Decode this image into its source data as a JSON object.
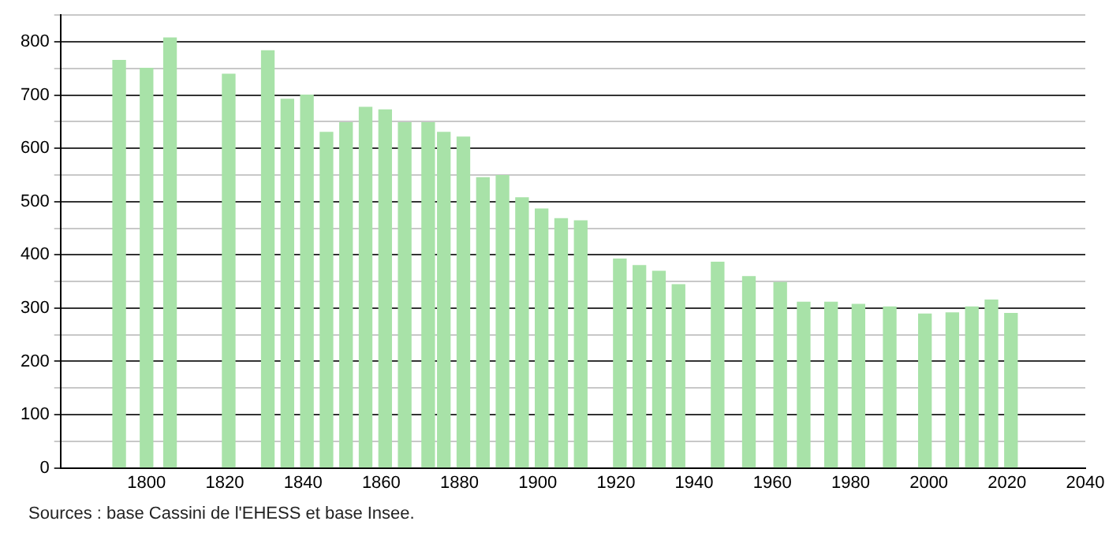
{
  "chart_data": {
    "type": "bar",
    "x": [
      1793,
      1800,
      1806,
      1821,
      1831,
      1836,
      1841,
      1846,
      1851,
      1856,
      1861,
      1866,
      1872,
      1876,
      1881,
      1886,
      1891,
      1896,
      1901,
      1906,
      1911,
      1921,
      1926,
      1931,
      1936,
      1946,
      1954,
      1962,
      1968,
      1975,
      1982,
      1990,
      1999,
      2006,
      2011,
      2016,
      2021
    ],
    "values": [
      765,
      750,
      807,
      739,
      783,
      692,
      700,
      630,
      648,
      677,
      672,
      648,
      648,
      630,
      621,
      545,
      549,
      507,
      486,
      468,
      464,
      392,
      380,
      369,
      344,
      386,
      359,
      348,
      311,
      311,
      307,
      302,
      289,
      291,
      302,
      315,
      290
    ],
    "color": "#a8e2a8",
    "xlim": [
      1778,
      2040
    ],
    "xticks": [
      1800,
      1820,
      1840,
      1860,
      1880,
      1900,
      1920,
      1940,
      1960,
      1980,
      2000,
      2020,
      2040
    ],
    "ylim": [
      0,
      850
    ],
    "yticks": [
      0,
      {
        "value": 50,
        "label": null
      },
      100,
      {
        "value": 150,
        "label": null
      },
      200,
      {
        "value": 250,
        "label": null
      },
      300,
      {
        "value": 350,
        "label": null
      },
      400,
      {
        "value": 450,
        "label": null
      },
      500,
      {
        "value": 550,
        "label": null
      },
      600,
      {
        "value": 650,
        "label": null
      },
      700,
      {
        "value": 750,
        "label": null
      },
      800,
      {
        "value": 850,
        "label": null
      }
    ],
    "grid": "y",
    "legend": false,
    "annotations": [
      "Sources : base Cassini de l'EHESS et base Insee."
    ]
  }
}
